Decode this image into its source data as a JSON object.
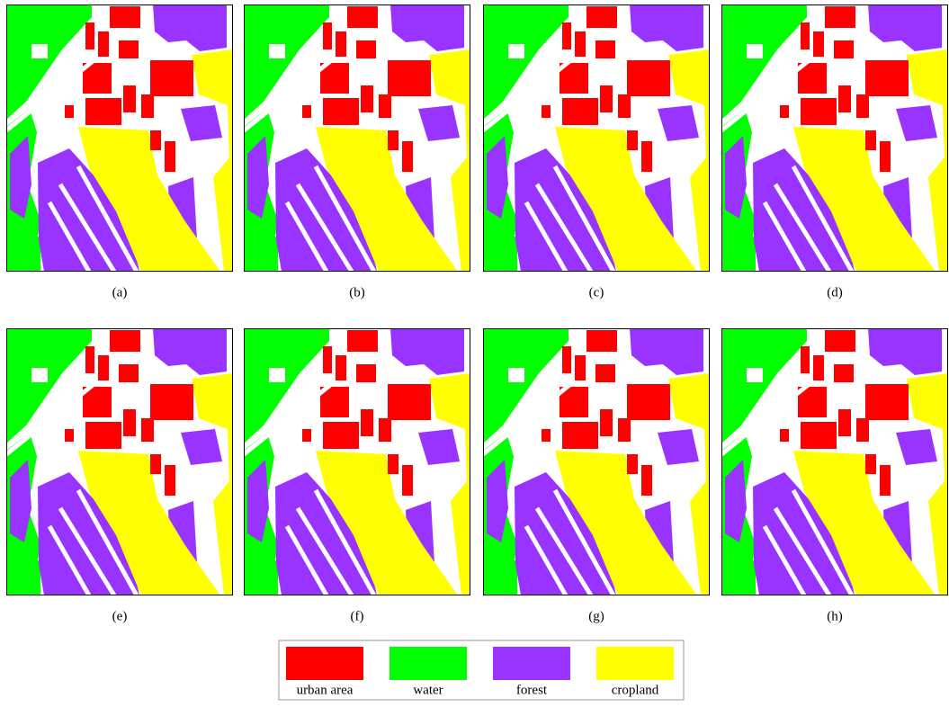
{
  "panels": [
    {
      "label": "(a)"
    },
    {
      "label": "(b)"
    },
    {
      "label": "(c)"
    },
    {
      "label": "(d)"
    },
    {
      "label": "(e)"
    },
    {
      "label": "(f)"
    },
    {
      "label": "(g)"
    },
    {
      "label": "(h)"
    }
  ],
  "legend": [
    {
      "name": "urban area",
      "color": "#ff0000"
    },
    {
      "name": "water",
      "color": "#00ff00"
    },
    {
      "name": "forest",
      "color": "#9933ff"
    },
    {
      "name": "cropland",
      "color": "#ffff00"
    }
  ]
}
